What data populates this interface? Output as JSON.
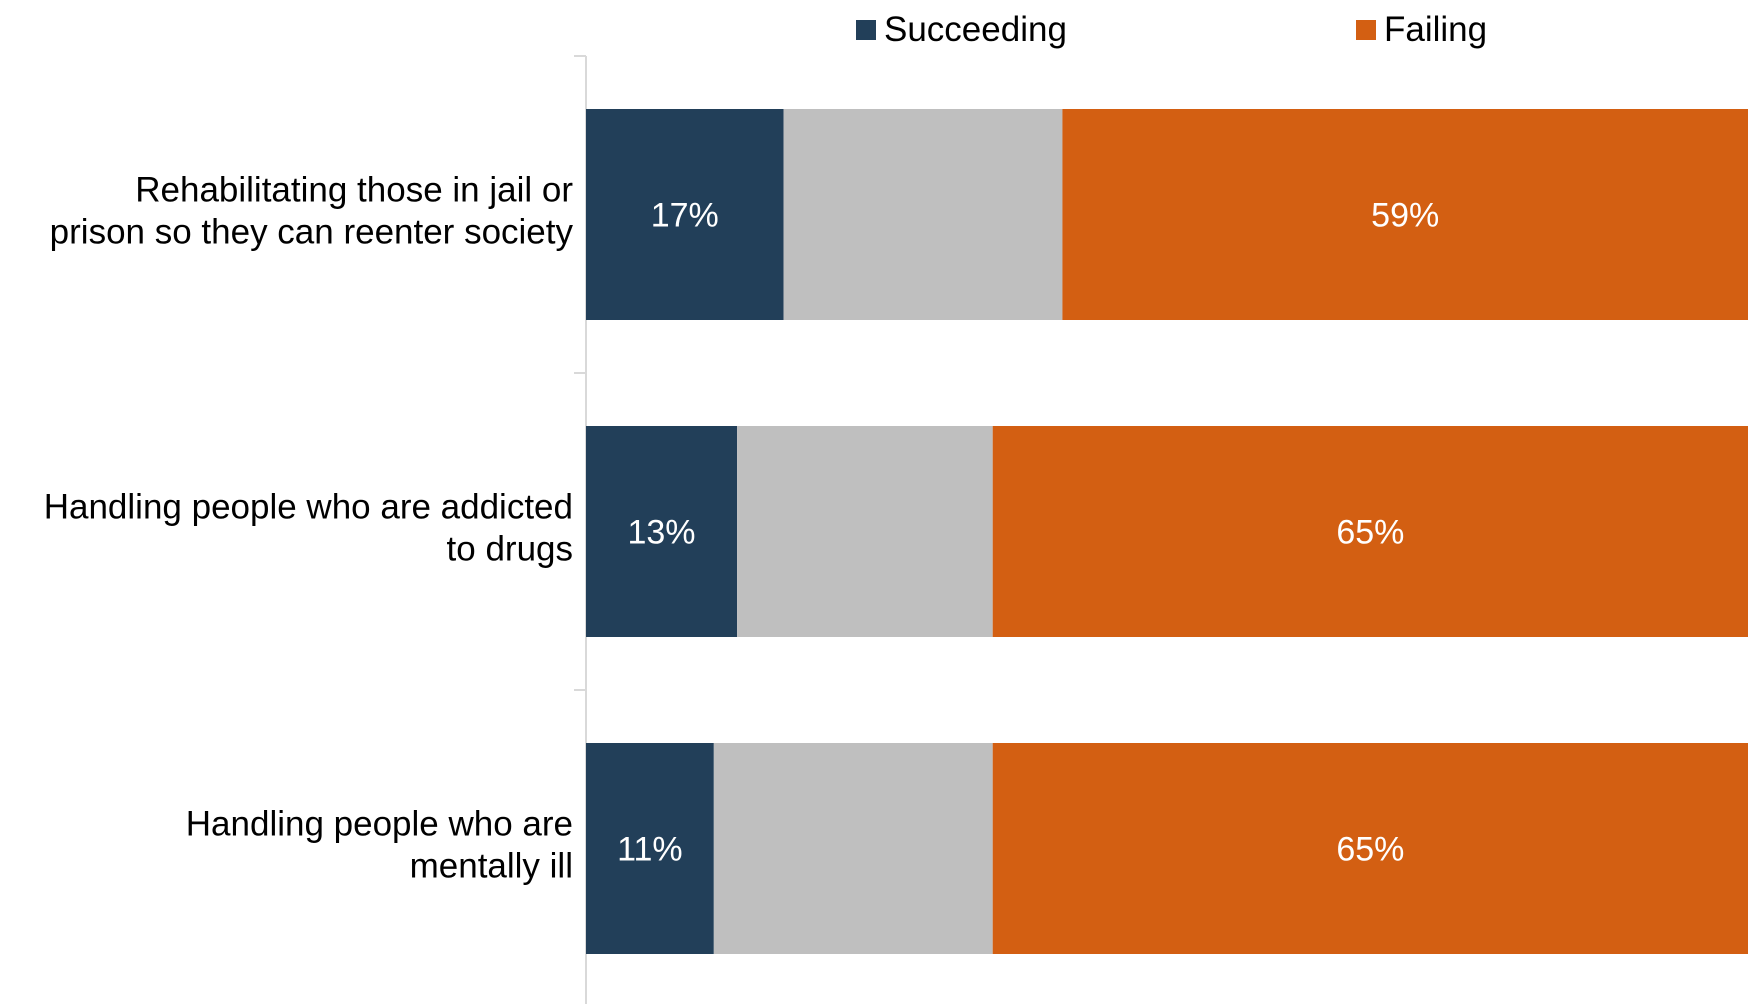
{
  "chart_data": {
    "type": "bar",
    "orientation": "horizontal",
    "stacked": true,
    "title": "",
    "xlabel": "",
    "ylabel": "",
    "categories": [
      "Rehabilitating those in jail or prison so they can reenter society",
      "Handling people who are addicted to drugs",
      "Handling people who are mentally ill"
    ],
    "category_lines": [
      [
        "Rehabilitating those in jail or",
        "prison so they can reenter society"
      ],
      [
        "Handling people who are addicted",
        "to drugs"
      ],
      [
        "Handling people who are",
        "mentally ill"
      ]
    ],
    "series": [
      {
        "name": "Succeeding",
        "values": [
          17,
          13,
          11
        ],
        "labels": [
          "17%",
          "13%",
          "11%"
        ],
        "color": "#223f59",
        "in_legend": true
      },
      {
        "name": "",
        "values": [
          24,
          22,
          24
        ],
        "labels": [
          "",
          "",
          ""
        ],
        "color": "#bfbfbf",
        "in_legend": false
      },
      {
        "name": "Failing",
        "values": [
          59,
          65,
          65
        ],
        "labels": [
          "59%",
          "65%",
          "65%"
        ],
        "color": "#d35f12",
        "in_legend": true
      }
    ],
    "xlim": [
      0,
      100
    ],
    "grid": false,
    "legend_position": "top",
    "label_color": "#ffffff",
    "text_color": "#000000",
    "axis_color": "#d9d9d9"
  }
}
